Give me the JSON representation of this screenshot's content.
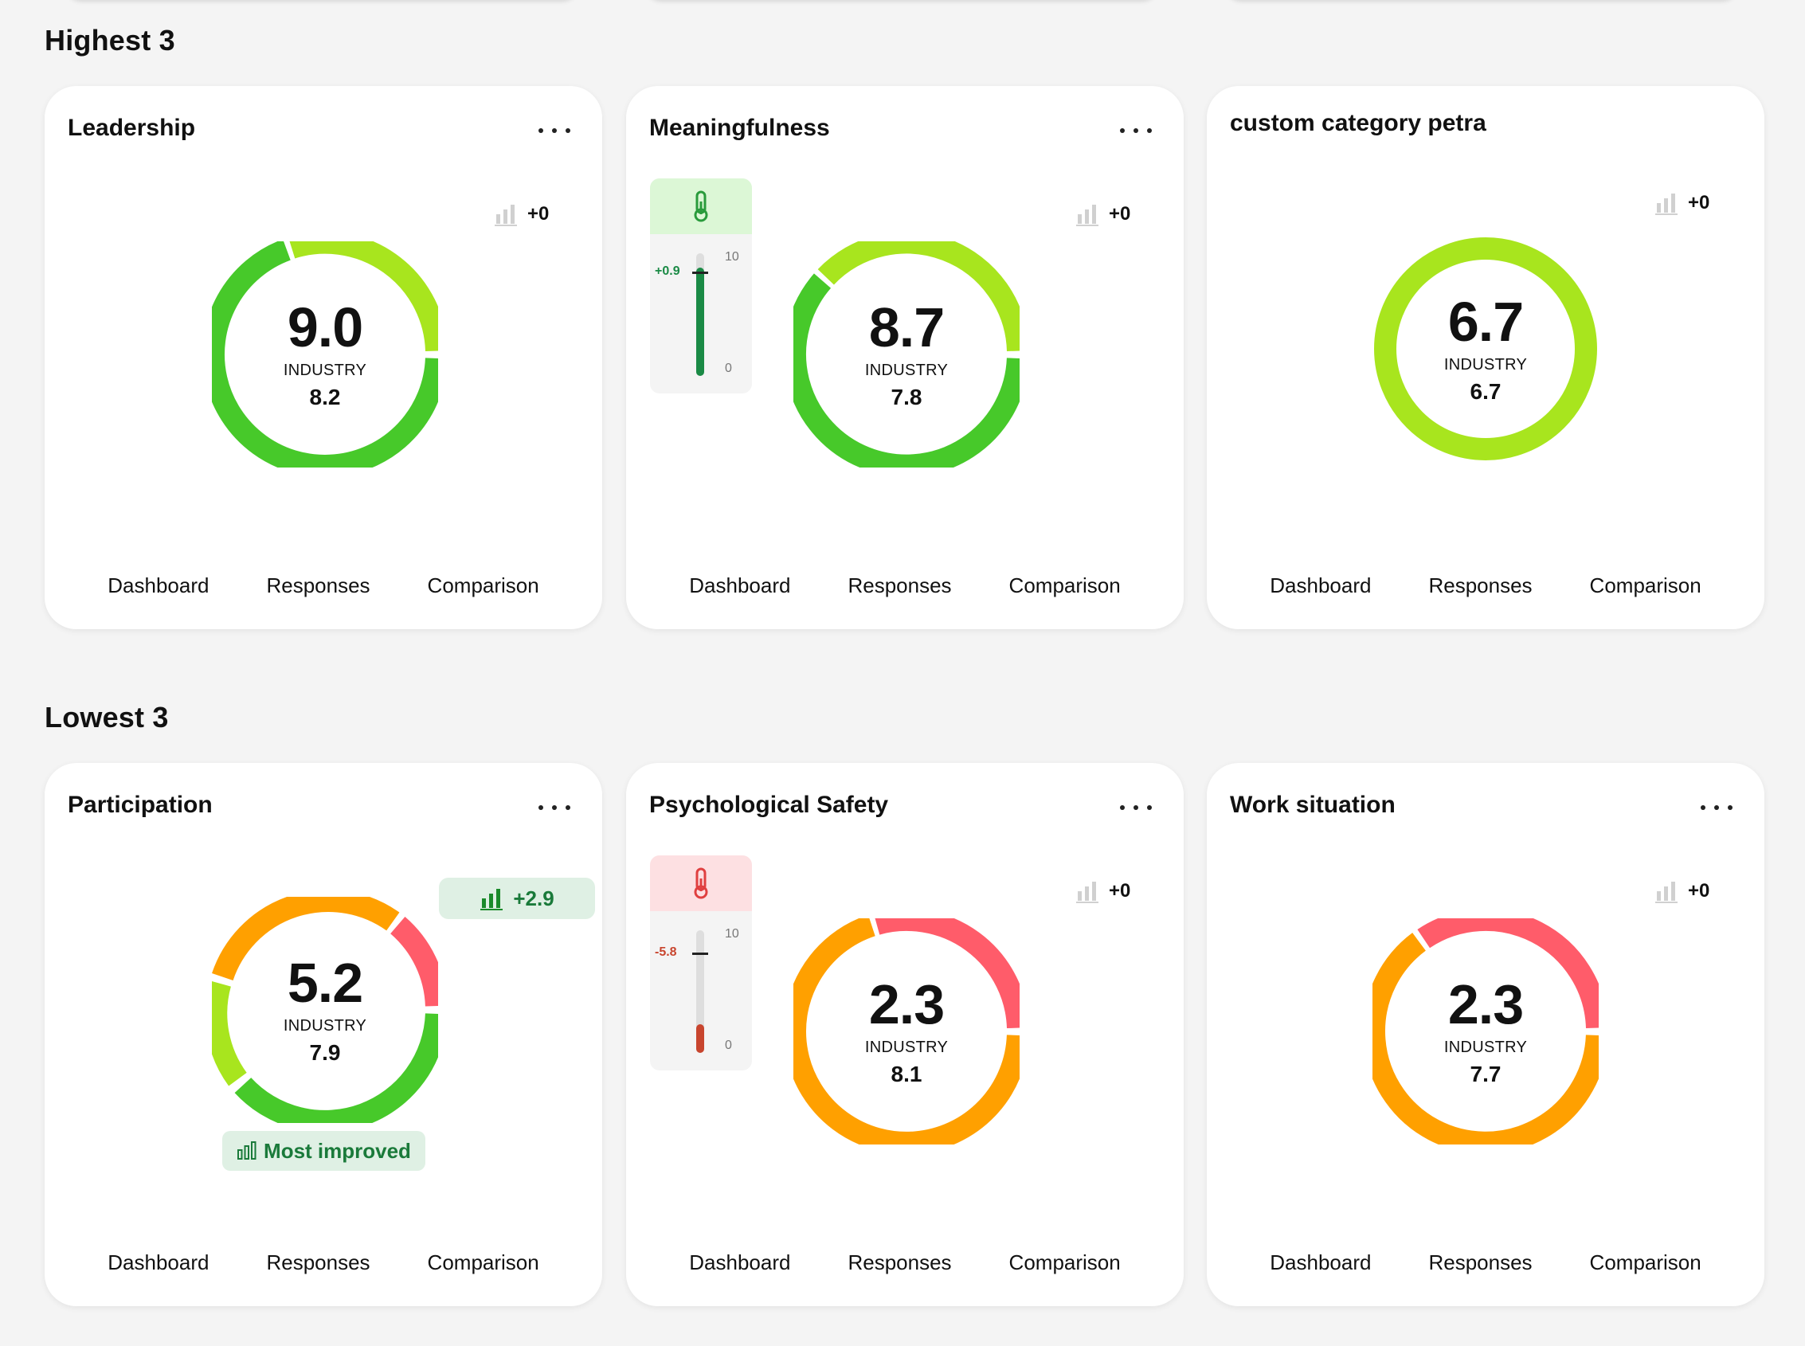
{
  "sections": [
    {
      "title": "Highest 3",
      "cards": [
        {
          "title": "Leadership",
          "score": "9.0",
          "industry_label": "INDUSTRY",
          "industry_value": "8.2",
          "trend": "+0"
        },
        {
          "title": "Meaningfulness",
          "score": "8.7",
          "industry_label": "INDUSTRY",
          "industry_value": "7.8",
          "trend": "+0",
          "thermometer": {
            "delta": "+0.9",
            "max": "10",
            "min": "0",
            "status_color": "#1a8a45"
          }
        },
        {
          "title": "custom category petra",
          "score": "6.7",
          "industry_label": "INDUSTRY",
          "industry_value": "6.7",
          "trend": "+0"
        }
      ]
    },
    {
      "title": "Lowest 3",
      "cards": [
        {
          "title": "Participation",
          "score": "5.2",
          "industry_label": "INDUSTRY",
          "industry_value": "7.9",
          "trend": "+2.9",
          "badge": "Most improved"
        },
        {
          "title": "Psychological Safety",
          "score": "2.3",
          "industry_label": "INDUSTRY",
          "industry_value": "8.1",
          "trend": "+0",
          "thermometer": {
            "delta": "-5.8",
            "max": "10",
            "min": "0",
            "status_color": "#c8452e"
          }
        },
        {
          "title": "Work situation",
          "score": "2.3",
          "industry_label": "INDUSTRY",
          "industry_value": "7.7",
          "trend": "+0"
        }
      ]
    }
  ],
  "card_links": [
    "Dashboard",
    "Responses",
    "Comparison"
  ],
  "icons": {
    "menu": "more-horizontal-icon",
    "trend": "bar-chart-icon",
    "thermometer": "thermometer-icon"
  },
  "colors": {
    "green": "#47c92a",
    "lime": "#a8e51e",
    "orange": "#ffa000",
    "red": "#ff5c6a",
    "thermo_green_bg": "#dcf7d6",
    "thermo_red_bg": "#fde0e2",
    "pill_bg": "#dff0e4",
    "pill_text": "#1a7a3a"
  }
}
